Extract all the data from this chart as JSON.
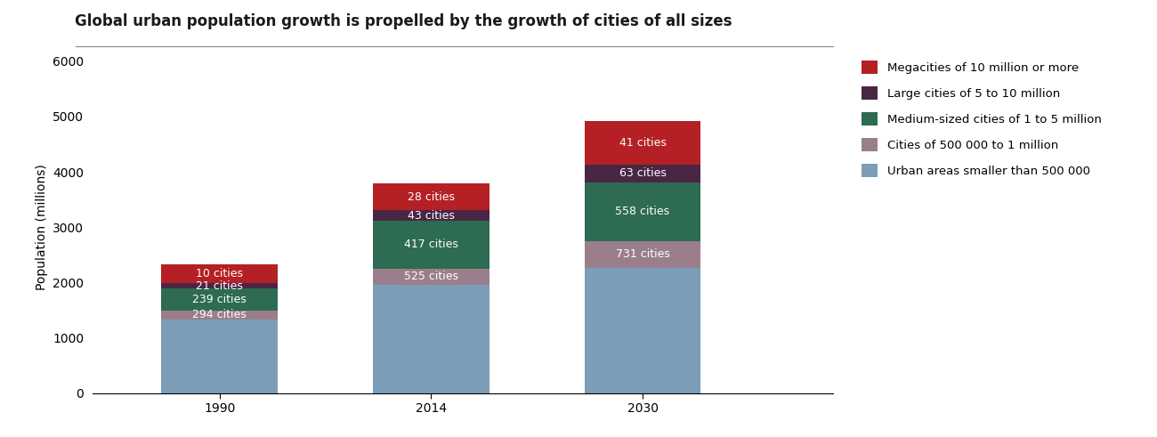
{
  "title": "Global urban population growth is propelled by the growth of cities of all sizes",
  "years": [
    "1990",
    "2014",
    "2030"
  ],
  "ylabel": "Population (millions)",
  "ylim": [
    0,
    6000
  ],
  "yticks": [
    0,
    1000,
    2000,
    3000,
    4000,
    5000,
    6000
  ],
  "segments": [
    {
      "label": "Urban areas smaller than 500 000",
      "color": "#7b9db8",
      "values": [
        1340,
        1960,
        2270
      ],
      "inner": [
        null,
        null,
        null
      ]
    },
    {
      "label": "Cities of 500 000 to 1 million",
      "color": "#9b7e8c",
      "values": [
        160,
        290,
        480
      ],
      "inner": [
        "294 cities",
        "525 cities",
        "731 cities"
      ]
    },
    {
      "label": "Medium-sized cities of 1 to 5 million",
      "color": "#2d6b52",
      "values": [
        390,
        870,
        1060
      ],
      "inner": [
        "239 cities",
        "417 cities",
        "558 cities"
      ]
    },
    {
      "label": "Large cities of 5 to 10 million",
      "color": "#4a2645",
      "values": [
        105,
        185,
        320
      ],
      "inner": [
        "21 cities",
        "43 cities",
        "63 cities"
      ]
    },
    {
      "label": "Megacities of 10 million or more",
      "color": "#b52025",
      "values": [
        330,
        490,
        790
      ],
      "inner": [
        "10 cities",
        "28 cities",
        "41 cities"
      ]
    }
  ],
  "bar_width": 0.55,
  "bar_positions": [
    0,
    1,
    2
  ],
  "title_fontsize": 12,
  "axis_fontsize": 10,
  "tick_fontsize": 10,
  "label_fontsize": 9,
  "title_underline_color": "#a0a0a0",
  "background_color": "#ffffff",
  "text_color": "#333333"
}
